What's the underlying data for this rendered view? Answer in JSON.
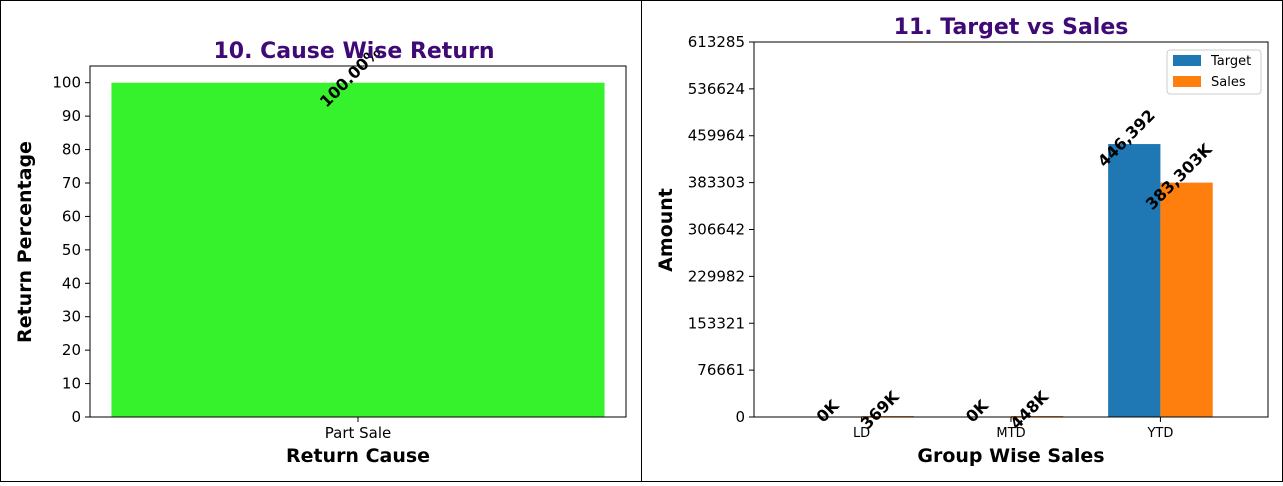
{
  "colors": {
    "title": "#3f0a75",
    "cause_bar": "#35f22d",
    "target": "#1f77b4",
    "sales": "#ff7f0e"
  },
  "chart_data": [
    {
      "type": "bar",
      "title": "10. Cause Wise Return",
      "xlabel": "Return Cause",
      "ylabel": "Return Percentage",
      "categories": [
        "Part Sale"
      ],
      "values": [
        100
      ],
      "data_labels": [
        "100.00%"
      ],
      "ylim": [
        0,
        105
      ],
      "yticks": [
        0,
        10,
        20,
        30,
        40,
        50,
        60,
        70,
        80,
        90,
        100
      ],
      "grid": false
    },
    {
      "type": "bar",
      "title": "11. Target vs Sales",
      "xlabel": "Group Wise Sales",
      "ylabel": "Amount",
      "categories": [
        "LD",
        "MTD",
        "YTD"
      ],
      "series": [
        {
          "name": "Target",
          "values": [
            0,
            0,
            446392
          ],
          "data_labels": [
            "0K",
            "0K",
            "446,392"
          ]
        },
        {
          "name": "Sales",
          "values": [
            369,
            448,
            383303
          ],
          "data_labels": [
            "369K",
            "448K",
            "383,303K"
          ]
        }
      ],
      "ylim": [
        0,
        613285
      ],
      "yticks": [
        "0",
        "76661",
        "153321",
        "229982",
        "306642",
        "383303",
        "459964",
        "536624",
        "613285"
      ],
      "legend": "top-right",
      "grid": false
    }
  ]
}
